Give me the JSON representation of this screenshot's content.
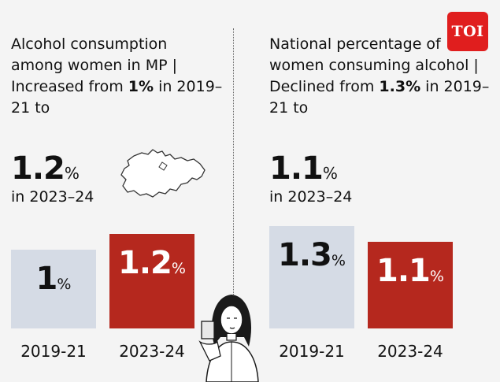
{
  "logo": {
    "text": "TOI"
  },
  "colors": {
    "bar_previous": "#d5dbe5",
    "bar_current": "#b5281e",
    "text": "#111111",
    "background": "#f4f4f4"
  },
  "left": {
    "heading_prefix": "Alcohol consumption among women in MP | Increased from ",
    "heading_bold": "1%",
    "heading_suffix": " in 2019–21 to",
    "big_value": "1.2",
    "big_unit": "%",
    "in_year": "in 2023–24"
  },
  "right": {
    "heading_prefix": "National percentage of women consuming alcohol | Declined from ",
    "heading_bold": "1.3%",
    "heading_suffix": " in 2019–21 to",
    "big_value": "1.1",
    "big_unit": "%",
    "in_year": "in 2023–24"
  },
  "chart_data": [
    {
      "type": "bar",
      "title": "Alcohol consumption among women in MP",
      "categories": [
        "2019-21",
        "2023-24"
      ],
      "values": [
        1,
        1.2
      ],
      "value_labels": [
        "1",
        "1.2"
      ],
      "unit": "%",
      "colors": [
        "#d5dbe5",
        "#b5281e"
      ],
      "label_colors": [
        "#111111",
        "#ffffff"
      ],
      "ylim": [
        0,
        1.3
      ],
      "grid": false
    },
    {
      "type": "bar",
      "title": "National percentage of women consuming alcohol",
      "categories": [
        "2019-21",
        "2023-24"
      ],
      "values": [
        1.3,
        1.1
      ],
      "value_labels": [
        "1.3",
        "1.1"
      ],
      "unit": "%",
      "colors": [
        "#d5dbe5",
        "#b5281e"
      ],
      "label_colors": [
        "#111111",
        "#ffffff"
      ],
      "ylim": [
        0,
        1.3
      ],
      "grid": false
    }
  ]
}
